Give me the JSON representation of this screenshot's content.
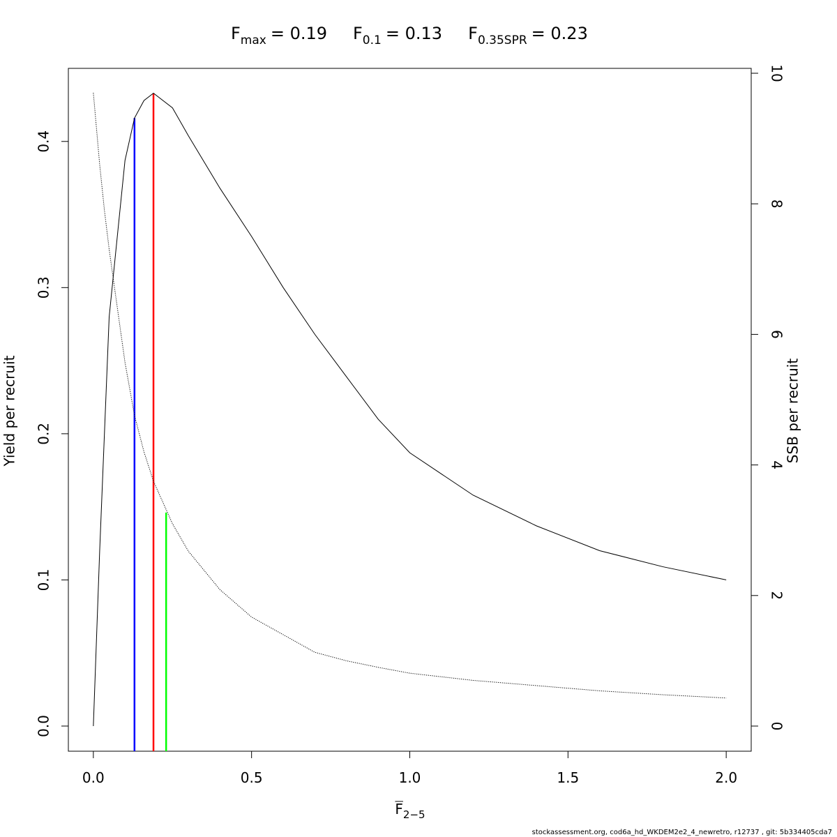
{
  "chart_data": {
    "type": "line",
    "title": [
      {
        "symbol": "F",
        "subscript": "max",
        "text": "= 0.19"
      },
      {
        "symbol": "F",
        "subscript": "0.1",
        "text": "= 0.13"
      },
      {
        "symbol": "F",
        "subscript": "0.35SPR",
        "text": "= 0.23"
      }
    ],
    "x_label": {
      "symbol": "F",
      "subscript": "2−5"
    },
    "y_label": "Yield per recruit",
    "y2_label": "SSB per recruit",
    "footer": "stockassessment.org, cod6a_hd_WKDEM2e2_4_newretro, r12737 , git: 5b334405cda7",
    "x": [
      0,
      0.01,
      0.02,
      0.035,
      0.05,
      0.1,
      0.13,
      0.16,
      0.19,
      0.25,
      0.3,
      0.4,
      0.5,
      0.6,
      0.7,
      0.8,
      0.9,
      1.0,
      1.2,
      1.4,
      1.6,
      1.8,
      2.0
    ],
    "series": [
      {
        "name": "Yield per recruit",
        "color": "#000000",
        "dash": "solid",
        "axis": "y",
        "values": [
          0,
          0.06,
          0.12,
          0.2,
          0.28,
          0.387,
          0.416,
          0.428,
          0.433,
          0.423,
          0.404,
          0.368,
          0.335,
          0.3,
          0.268,
          0.239,
          0.21,
          0.187,
          0.158,
          0.137,
          0.12,
          0.109,
          0.1
        ]
      },
      {
        "name": "SSB per recruit",
        "color": "#000000",
        "dash": "dotted",
        "axis": "y2",
        "values": [
          9.7,
          9.15,
          8.6,
          7.9,
          7.3,
          5.57,
          4.76,
          4.2,
          3.75,
          3.1,
          2.68,
          2.09,
          1.67,
          1.4,
          1.13,
          1.0,
          0.9,
          0.81,
          0.7,
          0.62,
          0.54,
          0.48,
          0.43
        ]
      }
    ],
    "reference_lines": [
      {
        "x": 0.13,
        "top": 0.416,
        "axis": "y",
        "color": "#0000ff"
      },
      {
        "x": 0.19,
        "top": 0.433,
        "axis": "y",
        "color": "#ff0000"
      },
      {
        "x": 0.23,
        "top": 3.27,
        "axis": "y2",
        "color": "#00ff00"
      }
    ],
    "xlim": [
      -0.079,
      2.079
    ],
    "ylim": [
      -0.0172,
      0.45
    ],
    "y2lim": [
      -0.385,
      10.075
    ],
    "xticks": [
      {
        "value": 0,
        "label": "0.0"
      },
      {
        "value": 0.5,
        "label": "0.5"
      },
      {
        "value": 1,
        "label": "1.0"
      },
      {
        "value": 1.5,
        "label": "1.5"
      },
      {
        "value": 2,
        "label": "2.0"
      }
    ],
    "yticks": [
      {
        "value": 0,
        "label": "0.0"
      },
      {
        "value": 0.1,
        "label": "0.1"
      },
      {
        "value": 0.2,
        "label": "0.2"
      },
      {
        "value": 0.3,
        "label": "0.3"
      },
      {
        "value": 0.4,
        "label": "0.4"
      }
    ],
    "y2ticks": [
      0,
      2,
      4,
      6,
      8,
      10
    ],
    "grid": false
  }
}
